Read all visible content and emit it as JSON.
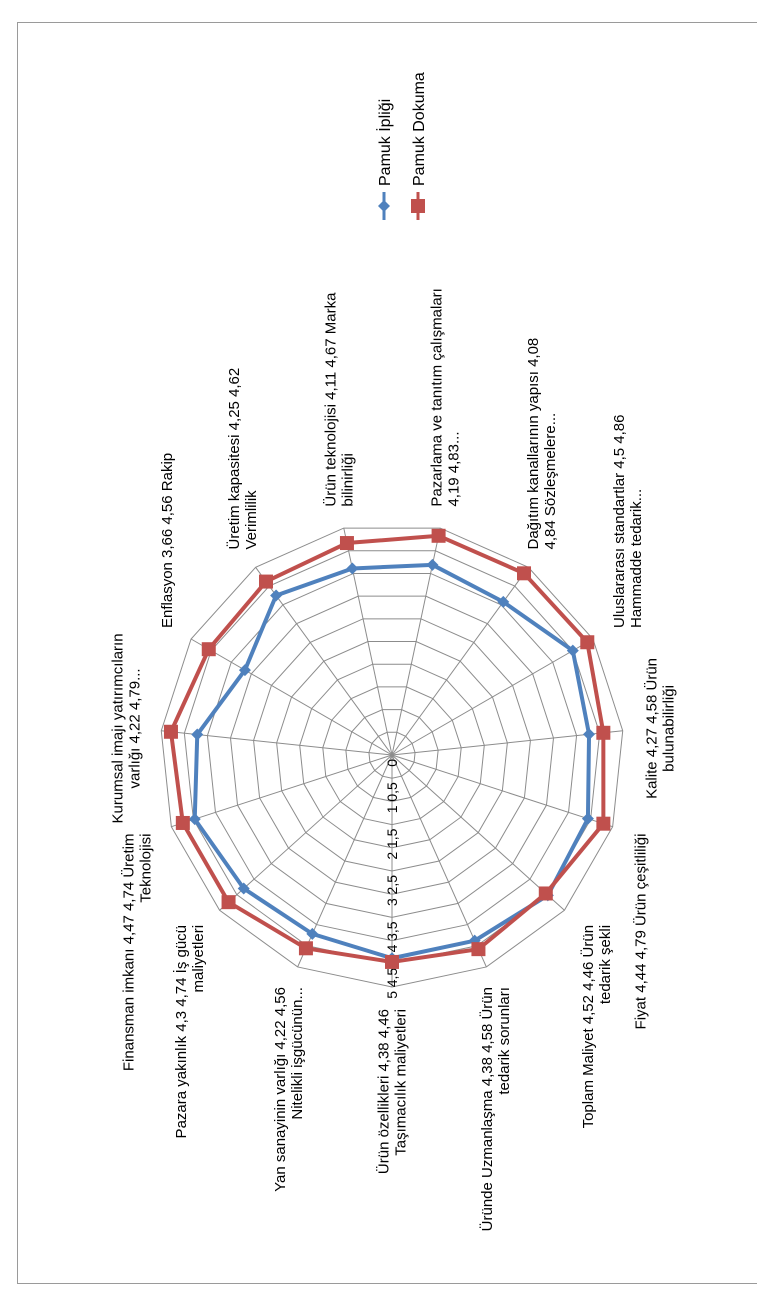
{
  "chart_data": {
    "type": "radar",
    "rlim": [
      0,
      5
    ],
    "rticks": [
      "0",
      "0,5",
      "1",
      "1,5",
      "2",
      "2,5",
      "3",
      "3,5",
      "4",
      "4,5",
      "5"
    ],
    "grid": true,
    "legend_position": "top-right",
    "categories": [
      "Ürün özellikleri 4,38 4,46 Taşımacılık maliyetleri",
      "Yan sanayinin varlığı 4,22 4,56 Nitelikli işgücünün...",
      "Pazara yakınlık 4,3 4,74 İş gücü maliyetleri",
      "Finansman imkanı 4,47 4,74 Üretim Teknolojisi",
      "Kurumsal imajı yatırımcıların varlığı 4,22 4,79...",
      "Enflasyon 3,66 4,56 Rakip",
      "Üretim kapasitesi 4,25 4,62 Verimlilik",
      "Ürün teknolojisi 4,11 4,67 Marka bilinirliği",
      "Pazarlama ve tanıtım çalışmaları 4,19 4,83...",
      "Dağıtım kanallarının yapısı 4,08 4,84 Sözleşmelere...",
      "Uluslararası standartlar 4,5 4,86 Hammadde tedarik...",
      "Kalite 4,27 4,58 Ürün bulunabilirliği",
      "Fiyat 4,44 4,79 Ürün çeşitliliği",
      "Toplam Maliyet 4,52 4,46 Ürün tedarik şekli",
      "Üründe Uzmanlaşma 4,38 4,58 Ürün tedarik sorunları"
    ],
    "series": [
      {
        "name": "Pamuk İpliği",
        "color": "#4f81bd",
        "marker": "diamond",
        "values": [
          4.38,
          4.22,
          4.3,
          4.47,
          4.22,
          3.66,
          4.25,
          4.11,
          4.19,
          4.08,
          4.5,
          4.27,
          4.44,
          4.52,
          4.38
        ]
      },
      {
        "name": "Pamuk Dokuma",
        "color": "#c0504d",
        "marker": "square",
        "values": [
          4.46,
          4.56,
          4.74,
          4.74,
          4.79,
          4.56,
          4.62,
          4.67,
          4.83,
          4.84,
          4.86,
          4.58,
          4.79,
          4.46,
          4.58
        ]
      }
    ]
  }
}
